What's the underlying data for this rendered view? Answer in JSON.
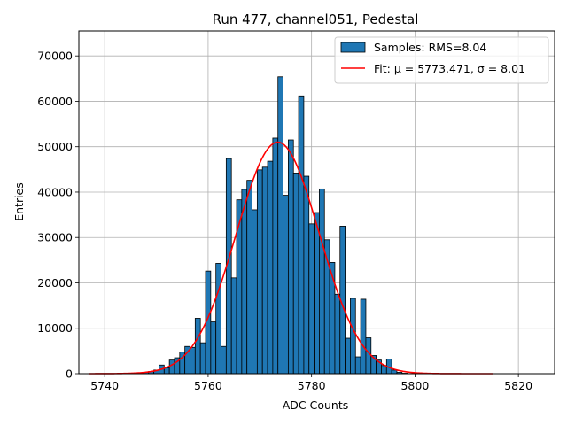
{
  "chart_data": {
    "type": "bar",
    "title": "Run 477, channel051, Pedestal",
    "xlabel": "ADC Counts",
    "ylabel": "Entries",
    "xlim": [
      5735,
      5827
    ],
    "ylim": [
      0,
      75500
    ],
    "xticks": [
      5740,
      5760,
      5780,
      5800,
      5820
    ],
    "yticks": [
      0,
      10000,
      20000,
      30000,
      40000,
      50000,
      60000,
      70000
    ],
    "grid": true,
    "legend_position": "upper-right",
    "bin_width": 1,
    "colors": {
      "bars": "#1f77b4",
      "bar_edge": "#000000",
      "fit": "#ff0000",
      "grid": "#b0b0b0"
    },
    "histogram": {
      "name": "Samples: RMS=8.04",
      "bin_centers": [
        5746,
        5747,
        5748,
        5749,
        5750,
        5751,
        5752,
        5753,
        5754,
        5755,
        5756,
        5757,
        5758,
        5759,
        5760,
        5761,
        5762,
        5763,
        5764,
        5765,
        5766,
        5767,
        5768,
        5769,
        5770,
        5771,
        5772,
        5773,
        5774,
        5775,
        5776,
        5777,
        5778,
        5779,
        5780,
        5781,
        5782,
        5783,
        5784,
        5785,
        5786,
        5787,
        5788,
        5789,
        5790,
        5791,
        5792,
        5793,
        5794,
        5795,
        5796,
        5797,
        5798
      ],
      "values": [
        100,
        150,
        300,
        500,
        800,
        1900,
        1300,
        3000,
        3500,
        4800,
        6000,
        5800,
        12200,
        6800,
        22600,
        11400,
        24300,
        6000,
        47400,
        21100,
        38300,
        40600,
        42600,
        36100,
        44900,
        45500,
        46800,
        51900,
        65400,
        39300,
        51500,
        44200,
        61200,
        43500,
        33000,
        35500,
        40700,
        29500,
        24500,
        17500,
        32500,
        7800,
        16600,
        3700,
        16400,
        7900,
        4000,
        3000,
        1800,
        3200,
        800,
        300,
        100
      ]
    },
    "fit": {
      "name": "Fit: μ = 5773.471, σ = 8.01",
      "mu": 5773.471,
      "sigma": 8.01,
      "amplitude": 51000,
      "x_range": [
        5737,
        5815
      ]
    }
  }
}
